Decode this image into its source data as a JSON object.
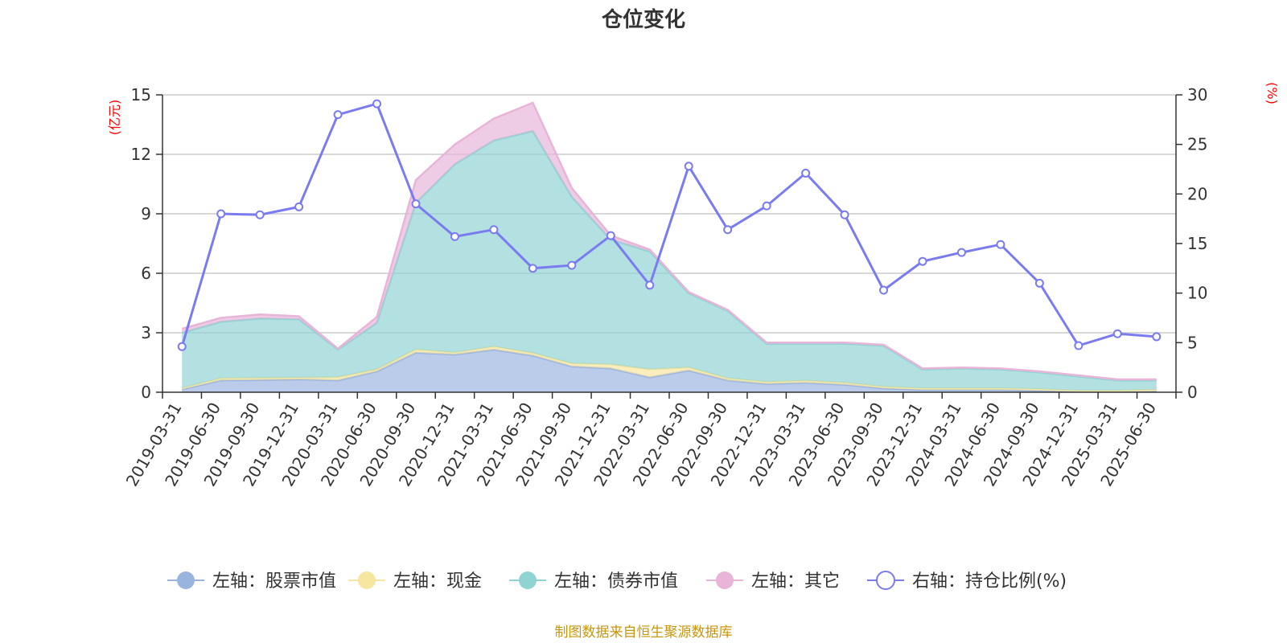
{
  "chart_data": {
    "type": "area",
    "title": "仓位变化",
    "left_unit": "(亿元)",
    "right_unit": "(%)",
    "x": [
      "2019-03-31",
      "2019-06-30",
      "2019-09-30",
      "2019-12-31",
      "2020-03-31",
      "2020-06-30",
      "2020-09-30",
      "2020-12-31",
      "2021-03-31",
      "2021-06-30",
      "2021-09-30",
      "2021-12-31",
      "2022-03-31",
      "2022-06-30",
      "2022-09-30",
      "2022-12-31",
      "2023-03-31",
      "2023-06-30",
      "2023-09-30",
      "2023-12-31",
      "2024-03-31",
      "2024-06-30",
      "2024-09-30",
      "2024-12-31",
      "2025-03-31",
      "2025-06-30"
    ],
    "left_axis": {
      "min": 0,
      "max": 15,
      "ticks": [
        "0",
        "3",
        "6",
        "9",
        "12",
        "15"
      ]
    },
    "right_axis": {
      "min": 0,
      "max": 30,
      "ticks": [
        "0",
        "5",
        "10",
        "15",
        "20",
        "25",
        "30"
      ]
    },
    "series": [
      {
        "name": "左轴：股票市值",
        "axis": "left",
        "color": "#9ab4e0",
        "values": [
          0.15,
          0.6,
          0.62,
          0.65,
          0.6,
          1.05,
          2.0,
          1.9,
          2.15,
          1.85,
          1.3,
          1.2,
          0.75,
          1.1,
          0.6,
          0.42,
          0.48,
          0.38,
          0.2,
          0.12,
          0.12,
          0.12,
          0.08,
          0.03,
          0.03,
          0.05
        ]
      },
      {
        "name": "左轴：现金",
        "axis": "left",
        "color": "#f7e6a0",
        "values": [
          0.05,
          0.1,
          0.1,
          0.08,
          0.15,
          0.1,
          0.15,
          0.1,
          0.15,
          0.12,
          0.15,
          0.2,
          0.4,
          0.15,
          0.1,
          0.1,
          0.1,
          0.1,
          0.08,
          0.08,
          0.08,
          0.08,
          0.08,
          0.05,
          0.05,
          0.08
        ]
      },
      {
        "name": "左轴：债券市值",
        "axis": "left",
        "color": "#8fd3d3",
        "values": [
          2.8,
          2.85,
          3.0,
          2.95,
          1.4,
          2.35,
          7.4,
          9.5,
          10.4,
          11.2,
          8.4,
          6.3,
          5.95,
          3.75,
          3.4,
          1.93,
          1.87,
          1.97,
          2.07,
          0.95,
          1.0,
          0.95,
          0.84,
          0.72,
          0.52,
          0.47
        ]
      },
      {
        "name": "左轴：其它",
        "axis": "left",
        "color": "#e8b4d8",
        "values": [
          0.2,
          0.2,
          0.2,
          0.15,
          0.05,
          0.3,
          1.15,
          1.0,
          1.1,
          1.43,
          0.45,
          0.2,
          0.1,
          0.05,
          0.05,
          0.05,
          0.05,
          0.05,
          0.05,
          0.05,
          0.05,
          0.05,
          0.05,
          0.05,
          0.05,
          0.05
        ]
      },
      {
        "name": "右轴：持仓比例(%)",
        "axis": "right",
        "color": "#7b7bf0",
        "values": [
          4.6,
          18.0,
          17.9,
          18.7,
          28.0,
          29.1,
          19.0,
          15.7,
          16.4,
          12.5,
          12.8,
          15.8,
          10.8,
          22.8,
          16.4,
          18.8,
          22.1,
          17.9,
          10.3,
          13.2,
          14.1,
          14.9,
          11.0,
          4.7,
          5.9,
          5.6
        ]
      }
    ],
    "grid": true,
    "legend_position": "bottom"
  },
  "source_note": "制图数据来自恒生聚源数据库"
}
